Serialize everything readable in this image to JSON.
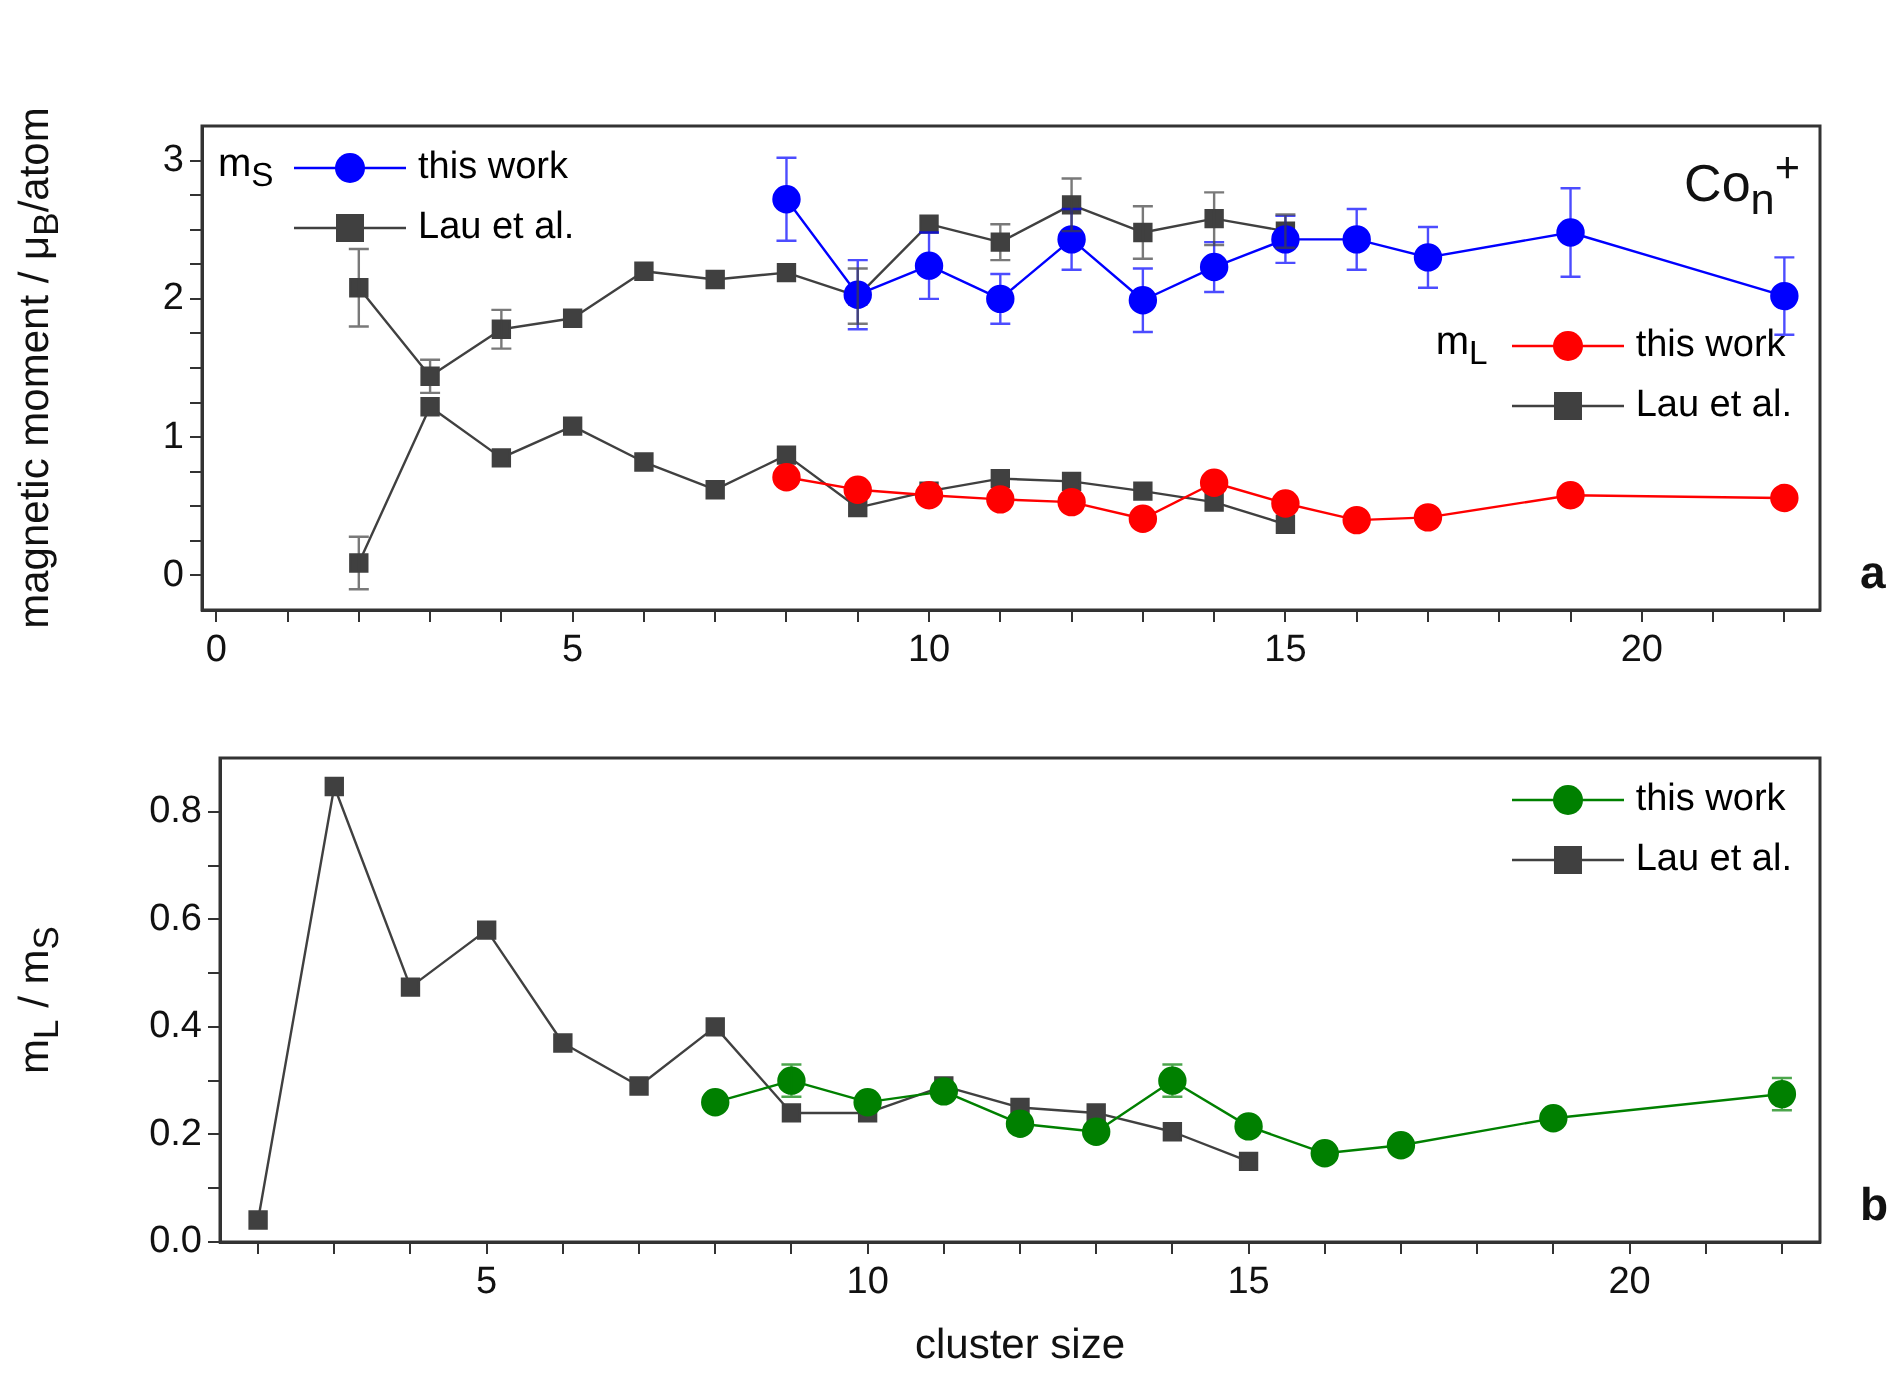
{
  "chart_data": [
    {
      "type": "line",
      "ylabel": "magnetic moment / μ$_{B}$/atom",
      "annotations": [
        "m$_{S}$",
        "m$_{L}$",
        "Co$_{n}$$^{+}$",
        "a"
      ],
      "legend": "top left",
      "grid": false,
      "line_style": "solid",
      "xlim": [
        -0.2,
        22.5
      ],
      "xticks": [
        0,
        {
          "value": 1,
          "label": null
        },
        {
          "value": 2,
          "label": null
        },
        {
          "value": 3,
          "label": null
        },
        {
          "value": 4,
          "label": null
        },
        5,
        {
          "value": 6,
          "label": null
        },
        {
          "value": 7,
          "label": null
        },
        {
          "value": 8,
          "label": null
        },
        {
          "value": 9,
          "label": null
        },
        10,
        {
          "value": 11,
          "label": null
        },
        {
          "value": 12,
          "label": null
        },
        {
          "value": 13,
          "label": null
        },
        {
          "value": 14,
          "label": null
        },
        15,
        {
          "value": 16,
          "label": null
        },
        {
          "value": 17,
          "label": null
        },
        {
          "value": 18,
          "label": null
        },
        {
          "value": 19,
          "label": null
        },
        20,
        {
          "value": 21,
          "label": null
        },
        {
          "value": 22,
          "label": null
        }
      ],
      "ylim": [
        -0.25,
        3.25
      ],
      "yticks": [
        0,
        {
          "value": 0.25,
          "label": null
        },
        {
          "value": 0.5,
          "label": null
        },
        {
          "value": 0.75,
          "label": null
        },
        1,
        {
          "value": 1.25,
          "label": null
        },
        {
          "value": 1.5,
          "label": null
        },
        {
          "value": 1.75,
          "label": null
        },
        2,
        {
          "value": 2.25,
          "label": null
        },
        {
          "value": 2.5,
          "label": null
        },
        {
          "value": 2.75,
          "label": null
        },
        3
      ],
      "series": [
        {
          "name": "this work",
          "color": "#0000ff",
          "marker": "circle",
          "x": [
            8,
            9,
            10,
            11,
            12,
            13,
            14,
            15,
            16,
            17,
            19,
            22
          ],
          "values": [
            2.72,
            2.03,
            2.24,
            2.0,
            2.43,
            1.99,
            2.23,
            2.43,
            2.43,
            2.3,
            2.48,
            2.02
          ],
          "errors": [
            0.3,
            0.25,
            0.24,
            0.18,
            0.22,
            0.23,
            0.18,
            0.17,
            0.22,
            0.22,
            0.32,
            0.28
          ]
        },
        {
          "name": "Lau et al.",
          "color": "#404040",
          "marker": "square",
          "x": [
            2,
            3,
            4,
            5,
            6,
            7,
            8,
            9,
            10,
            11,
            12,
            13,
            14,
            15
          ],
          "values": [
            2.08,
            1.44,
            1.78,
            1.86,
            2.2,
            2.14,
            2.19,
            2.02,
            2.54,
            2.41,
            2.68,
            2.48,
            2.58,
            2.49
          ],
          "errors": [
            0.28,
            0.12,
            0.14,
            null,
            null,
            null,
            null,
            0.2,
            null,
            0.13,
            0.19,
            0.19,
            0.19,
            0.12
          ]
        },
        {
          "name": "this work",
          "color": "#ff0000",
          "marker": "circle",
          "x": [
            8,
            9,
            10,
            11,
            12,
            13,
            14,
            15,
            16,
            17,
            19,
            22
          ],
          "values": [
            0.71,
            0.62,
            0.58,
            0.55,
            0.53,
            0.41,
            0.67,
            0.52,
            0.4,
            0.42,
            0.58,
            0.56
          ]
        },
        {
          "name": "Lau et al.",
          "color": "#404040",
          "marker": "square",
          "x": [
            2,
            3,
            4,
            5,
            6,
            7,
            8,
            9,
            10,
            11,
            12,
            13,
            14,
            15
          ],
          "values": [
            0.09,
            1.22,
            0.85,
            1.08,
            0.82,
            0.62,
            0.87,
            0.49,
            0.61,
            0.7,
            0.68,
            0.61,
            0.53,
            0.37
          ],
          "errors": [
            0.19,
            null,
            null,
            null,
            null,
            null,
            null,
            null,
            null,
            null,
            null,
            null,
            null,
            null
          ]
        }
      ]
    },
    {
      "type": "line",
      "xlabel": "cluster size",
      "ylabel": "m$_{L}$ / m$_{S}$",
      "annotations": [
        "b"
      ],
      "legend": "top right",
      "grid": false,
      "line_style": "solid",
      "xlim": [
        1.5,
        22.5
      ],
      "xticks": [
        {
          "value": 2,
          "label": null
        },
        {
          "value": 3,
          "label": null
        },
        {
          "value": 4,
          "label": null
        },
        5,
        {
          "value": 6,
          "label": null
        },
        {
          "value": 7,
          "label": null
        },
        {
          "value": 8,
          "label": null
        },
        {
          "value": 9,
          "label": null
        },
        10,
        {
          "value": 11,
          "label": null
        },
        {
          "value": 12,
          "label": null
        },
        {
          "value": 13,
          "label": null
        },
        {
          "value": 14,
          "label": null
        },
        15,
        {
          "value": 16,
          "label": null
        },
        {
          "value": 17,
          "label": null
        },
        {
          "value": 18,
          "label": null
        },
        {
          "value": 19,
          "label": null
        },
        20,
        {
          "value": 21,
          "label": null
        },
        {
          "value": 22,
          "label": null
        }
      ],
      "ylim": [
        0,
        0.9
      ],
      "yticks": [
        {
          "value": 0,
          "label": "0.0"
        },
        {
          "value": 0.1,
          "label": null
        },
        {
          "value": 0.2,
          "label": "0.2"
        },
        {
          "value": 0.3,
          "label": null
        },
        {
          "value": 0.4,
          "label": "0.4"
        },
        {
          "value": 0.5,
          "label": null
        },
        {
          "value": 0.6,
          "label": "0.6"
        },
        {
          "value": 0.7,
          "label": null
        },
        {
          "value": 0.8,
          "label": "0.8"
        }
      ],
      "series": [
        {
          "name": "this work",
          "color": "#008000",
          "marker": "circle",
          "x": [
            8,
            9,
            10,
            11,
            12,
            13,
            14,
            15,
            16,
            17,
            19,
            22
          ],
          "values": [
            0.26,
            0.3,
            0.26,
            0.28,
            0.22,
            0.205,
            0.3,
            0.215,
            0.165,
            0.18,
            0.23,
            0.275
          ],
          "errors": [
            null,
            0.03,
            null,
            null,
            null,
            null,
            0.03,
            null,
            null,
            null,
            null,
            0.03
          ]
        },
        {
          "name": "Lau et al.",
          "color": "#404040",
          "marker": "square",
          "x": [
            2,
            3,
            4,
            5,
            6,
            7,
            8,
            9,
            10,
            11,
            12,
            13,
            14,
            15
          ],
          "values": [
            0.041,
            0.847,
            0.474,
            0.58,
            0.37,
            0.29,
            0.4,
            0.24,
            0.24,
            0.29,
            0.25,
            0.24,
            0.205,
            0.15
          ]
        }
      ]
    }
  ]
}
